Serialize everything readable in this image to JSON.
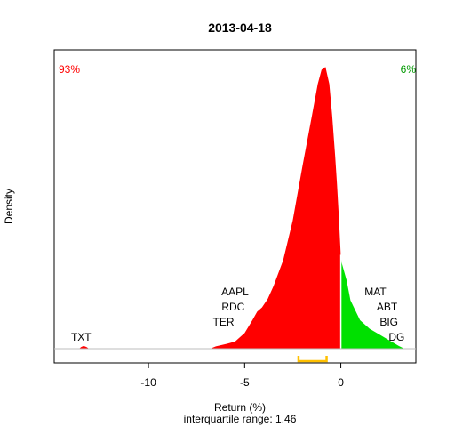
{
  "chart_data": {
    "type": "area",
    "title": "2013-04-18",
    "xlabel": "Return (%)",
    "subtitle": "interquartile range: 1.46",
    "ylabel": "Density",
    "xlim": [
      -14.9,
      3.9
    ],
    "x_ticks": [
      -10,
      -5,
      0
    ],
    "x_tick_labels": [
      "-10",
      "-5",
      "0"
    ],
    "split_at": 0,
    "negative_share": "93%",
    "positive_share": "6%",
    "colors": {
      "negative": "#ff0000",
      "positive": "#00e000",
      "iqr": "#ffc000",
      "baseline": "#bebebe"
    },
    "iqr": [
      -2.2,
      -0.74
    ],
    "density": {
      "x": [
        -13.6,
        -13.5,
        -13.4,
        -13.3,
        -13.2,
        -13.1,
        -6.8,
        -6.5,
        -6.0,
        -5.5,
        -5.0,
        -4.6,
        -4.35,
        -4.1,
        -3.8,
        -3.5,
        -3.0,
        -2.5,
        -2.0,
        -1.5,
        -1.2,
        -1.0,
        -0.8,
        -0.6,
        -0.45,
        -0.3,
        -0.2,
        -0.1,
        0.0,
        0.05,
        0.3,
        0.5,
        1.0,
        1.5,
        2.0,
        2.5,
        3.0,
        3.3
      ],
      "y": [
        0,
        0.006,
        0.009,
        0.008,
        0.005,
        0,
        0,
        0.008,
        0.016,
        0.025,
        0.055,
        0.1,
        0.13,
        0.145,
        0.175,
        0.22,
        0.31,
        0.45,
        0.64,
        0.82,
        0.93,
        0.98,
        0.99,
        0.93,
        0.82,
        0.68,
        0.58,
        0.46,
        0.32,
        0.3,
        0.24,
        0.17,
        0.1,
        0.07,
        0.05,
        0.03,
        0.01,
        0
      ]
    },
    "annotations": [
      {
        "text": "TXT",
        "x": -13.5
      },
      {
        "text": "AAPL",
        "x": -5.5
      },
      {
        "text": "RDC",
        "x": -5.6
      },
      {
        "text": "TER",
        "x": -6.1
      },
      {
        "text": "MAT",
        "x": 1.8
      },
      {
        "text": "ABT",
        "x": 2.4
      },
      {
        "text": "BIG",
        "x": 2.5
      },
      {
        "text": "DG",
        "x": 2.9
      }
    ]
  }
}
